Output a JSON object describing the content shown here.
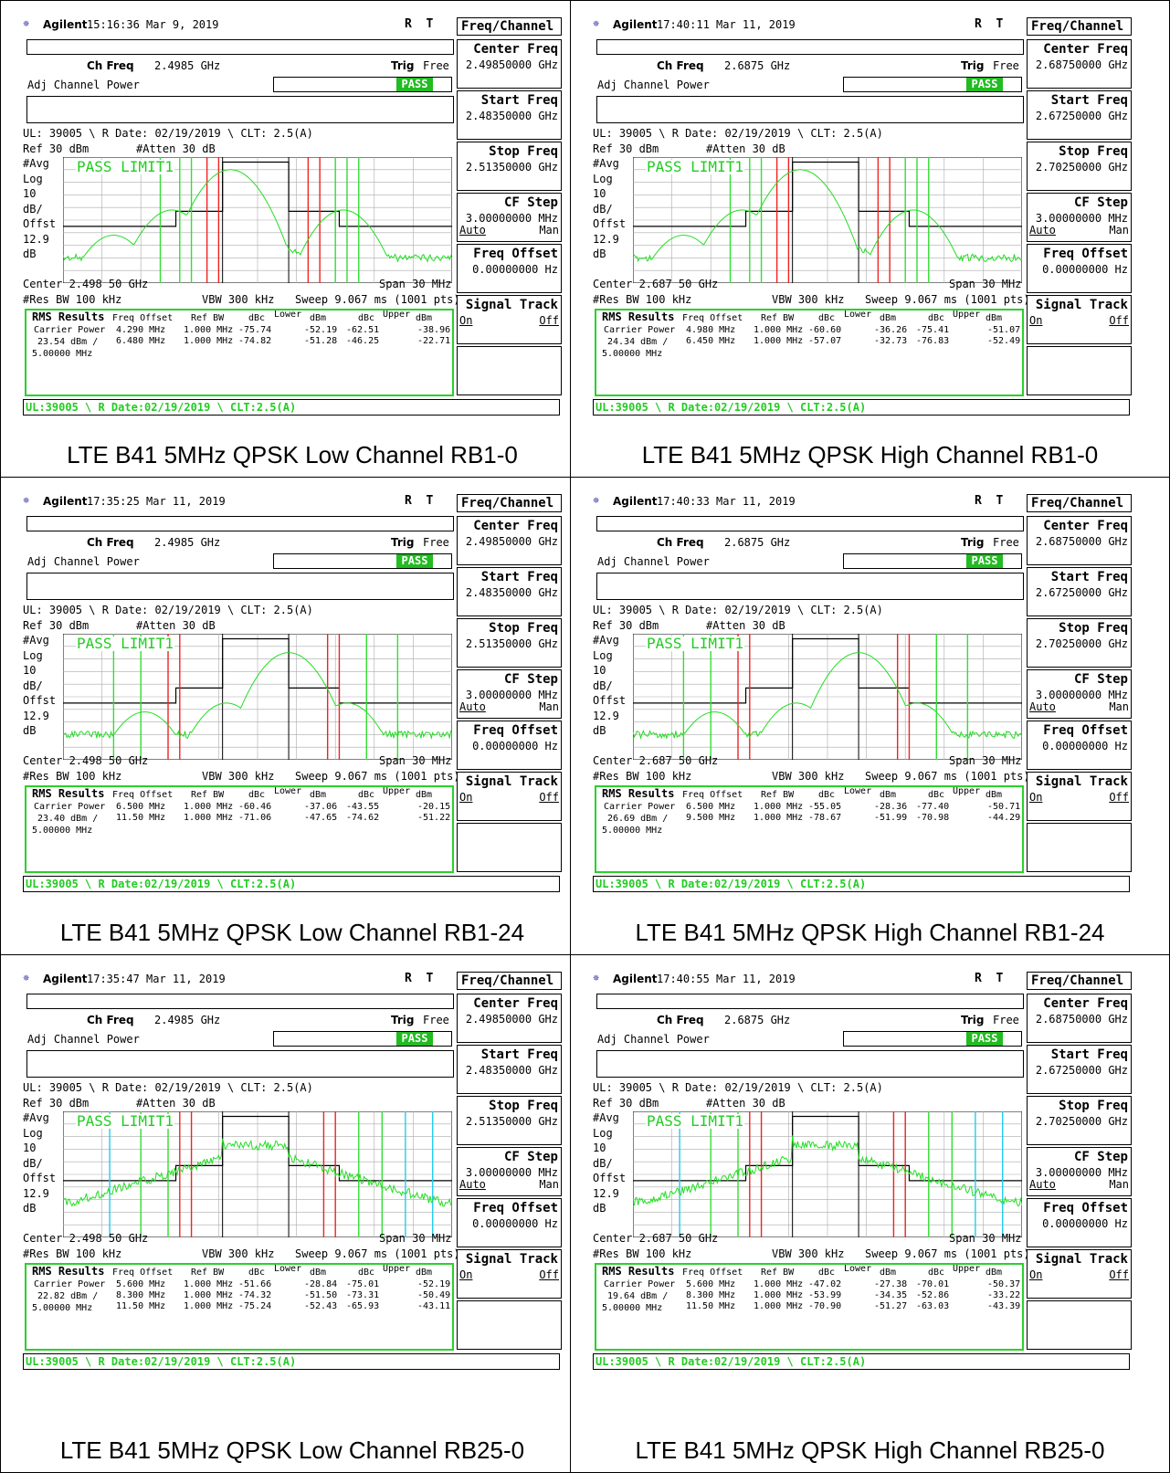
{
  "colors": {
    "trace": "#22dd22",
    "pass_bg": "#22bb22",
    "green_line": "#33dd33",
    "red_line": "#ee2222",
    "cyan_line": "#22ccee",
    "status_text": "#22cc22"
  },
  "panels": [
    {
      "caption": "LTE B41 5MHz QPSK Low Channel RB1-0",
      "header": {
        "brand": "Agilent",
        "time": "15:16:36",
        "date": "Mar 9, 2019",
        "rt": "R  T",
        "menu_title": "Freq/Channel"
      },
      "ch_freq_label": "Ch Freq",
      "ch_freq": "2.4985 GHz",
      "trig_label": "Trig",
      "trig": "Free",
      "adj": "Adj Channel Power",
      "pass": "PASS",
      "ul_line": "UL: 39005 \\ R Date: 02/19/2019 \\ CLT: 2.5(A)",
      "ref": "Ref 30 dBm",
      "atten": "#Atten 30 dB",
      "left_axis": [
        "#Avg",
        "Log",
        "10",
        "dB/",
        "Offst",
        "12.9",
        "dB"
      ],
      "limit": "PASS LIMIT1",
      "center": "Center 2.498 50 GHz",
      "span": "Span 30 MHz",
      "res_bw": "#Res BW 100 kHz",
      "vbw": "VBW 300 kHz",
      "sweep": "Sweep 9.067 ms (1001 pts)",
      "rms": {
        "title": "RMS Results",
        "h_freq": "Freq Offset",
        "h_ref": "Ref BW",
        "h_dbc1": "dBc",
        "h_lower": "Lower",
        "h_dbm1": "dBm",
        "h_dbc2": "dBc",
        "h_upper": "Upper",
        "h_dbm2": "dBm",
        "carrier": [
          "Carrier Power",
          "23.54 dBm /",
          "5.00000 MHz"
        ],
        "rows": [
          [
            "4.290 MHz",
            "1.000 MHz",
            "-75.74",
            "-52.19",
            "-62.51",
            "-38.96"
          ],
          [
            "6.480 MHz",
            "1.000 MHz",
            "-74.82",
            "-51.28",
            "-46.25",
            "-22.71"
          ]
        ]
      },
      "status": "UL:39005 \\ R Date:02/19/2019 \\ CLT:2.5(A)",
      "menu": [
        [
          "Center Freq",
          "2.49850000 GHz"
        ],
        [
          "Start Freq",
          "2.48350000 GHz"
        ],
        [
          "Stop Freq",
          "2.51350000 GHz"
        ],
        [
          "CF Step",
          "3.00000000 MHz",
          "Auto",
          "Man"
        ],
        [
          "Freq Offset",
          "0.00000000 Hz"
        ],
        [
          "Signal Track",
          "",
          "On",
          "Off"
        ],
        [
          "",
          ""
        ]
      ],
      "trace_kind": "tone_low"
    },
    {
      "caption": "LTE B41 5MHz QPSK High Channel RB1-0",
      "header": {
        "brand": "Agilent",
        "time": "17:40:11",
        "date": "Mar 11, 2019",
        "rt": "R  T",
        "menu_title": "Freq/Channel"
      },
      "ch_freq_label": "Ch Freq",
      "ch_freq": "2.6875 GHz",
      "trig_label": "Trig",
      "trig": "Free",
      "adj": "Adj Channel Power",
      "pass": "PASS",
      "ul_line": "UL: 39005 \\ R Date: 02/19/2019 \\ CLT: 2.5(A)",
      "ref": "Ref 30 dBm",
      "atten": "#Atten 30 dB",
      "left_axis": [
        "#Avg",
        "Log",
        "10",
        "dB/",
        "Offst",
        "12.9",
        "dB"
      ],
      "limit": "PASS LIMIT1",
      "center": "Center 2.687 50 GHz",
      "span": "Span 30 MHz",
      "res_bw": "#Res BW 100 kHz",
      "vbw": "VBW 300 kHz",
      "sweep": "Sweep 9.067 ms (1001 pts)",
      "rms": {
        "title": "RMS Results",
        "h_freq": "Freq Offset",
        "h_ref": "Ref BW",
        "h_dbc1": "dBc",
        "h_lower": "Lower",
        "h_dbm1": "dBm",
        "h_dbc2": "dBc",
        "h_upper": "Upper",
        "h_dbm2": "dBm",
        "carrier": [
          "Carrier Power",
          "24.34 dBm /",
          "5.00000 MHz"
        ],
        "rows": [
          [
            "4.980 MHz",
            "1.000 MHz",
            "-60.60",
            "-36.26",
            "-75.41",
            "-51.07"
          ],
          [
            "6.450 MHz",
            "1.000 MHz",
            "-57.07",
            "-32.73",
            "-76.83",
            "-52.49"
          ]
        ]
      },
      "status": "UL:39005 \\ R Date:02/19/2019 \\ CLT:2.5(A)",
      "menu": [
        [
          "Center Freq",
          "2.68750000 GHz"
        ],
        [
          "Start Freq",
          "2.67250000 GHz"
        ],
        [
          "Stop Freq",
          "2.70250000 GHz"
        ],
        [
          "CF Step",
          "3.00000000 MHz",
          "Auto",
          "Man"
        ],
        [
          "Freq Offset",
          "0.00000000 Hz"
        ],
        [
          "Signal Track",
          "",
          "On",
          "Off"
        ],
        [
          "",
          ""
        ]
      ],
      "trace_kind": "tone_low"
    },
    {
      "caption": "LTE B41 5MHz QPSK Low Channel RB1-24",
      "header": {
        "brand": "Agilent",
        "time": "17:35:25",
        "date": "Mar 11, 2019",
        "rt": "R  T",
        "menu_title": "Freq/Channel"
      },
      "ch_freq_label": "Ch Freq",
      "ch_freq": "2.4985 GHz",
      "trig_label": "Trig",
      "trig": "Free",
      "adj": "Adj Channel Power",
      "pass": "PASS",
      "ul_line": "UL: 39005 \\ R Date: 02/19/2019 \\ CLT: 2.5(A)",
      "ref": "Ref 30 dBm",
      "atten": "#Atten 30 dB",
      "left_axis": [
        "#Avg",
        "Log",
        "10",
        "dB/",
        "Offst",
        "12.9",
        "dB"
      ],
      "limit": "PASS LIMIT1",
      "center": "Center 2.498 50 GHz",
      "span": "Span 30 MHz",
      "res_bw": "#Res BW 100 kHz",
      "vbw": "VBW 300 kHz",
      "sweep": "Sweep 9.067 ms (1001 pts)",
      "rms": {
        "title": "RMS Results",
        "h_freq": "Freq Offset",
        "h_ref": "Ref BW",
        "h_dbc1": "dBc",
        "h_lower": "Lower",
        "h_dbm1": "dBm",
        "h_dbc2": "dBc",
        "h_upper": "Upper",
        "h_dbm2": "dBm",
        "carrier": [
          "Carrier Power",
          "23.40 dBm /",
          "5.00000 MHz"
        ],
        "rows": [
          [
            "6.500 MHz",
            "1.000 MHz",
            "-60.46",
            "-37.06",
            "-43.55",
            "-20.15"
          ],
          [
            "11.50 MHz",
            "1.000 MHz",
            "-71.06",
            "-47.65",
            "-74.62",
            "-51.22"
          ]
        ]
      },
      "status": "UL:39005 \\ R Date:02/19/2019 \\ CLT:2.5(A)",
      "menu": [
        [
          "Center Freq",
          "2.49850000 GHz"
        ],
        [
          "Start Freq",
          "2.48350000 GHz"
        ],
        [
          "Stop Freq",
          "2.51350000 GHz"
        ],
        [
          "CF Step",
          "3.00000000 MHz",
          "Auto",
          "Man"
        ],
        [
          "Freq Offset",
          "0.00000000 Hz"
        ],
        [
          "Signal Track",
          "",
          "On",
          "Off"
        ],
        [
          "",
          ""
        ]
      ],
      "trace_kind": "tone_high"
    },
    {
      "caption": "LTE B41 5MHz QPSK High Channel RB1-24",
      "header": {
        "brand": "Agilent",
        "time": "17:40:33",
        "date": "Mar 11, 2019",
        "rt": "R  T",
        "menu_title": "Freq/Channel"
      },
      "ch_freq_label": "Ch Freq",
      "ch_freq": "2.6875 GHz",
      "trig_label": "Trig",
      "trig": "Free",
      "adj": "Adj Channel Power",
      "pass": "PASS",
      "ul_line": "UL: 39005 \\ R Date: 02/19/2019 \\ CLT: 2.5(A)",
      "ref": "Ref 30 dBm",
      "atten": "#Atten 30 dB",
      "left_axis": [
        "#Avg",
        "Log",
        "10",
        "dB/",
        "Offst",
        "12.9",
        "dB"
      ],
      "limit": "PASS LIMIT1",
      "center": "Center 2.687 50 GHz",
      "span": "Span 30 MHz",
      "res_bw": "#Res BW 100 kHz",
      "vbw": "VBW 300 kHz",
      "sweep": "Sweep 9.067 ms (1001 pts)",
      "rms": {
        "title": "RMS Results",
        "h_freq": "Freq Offset",
        "h_ref": "Ref BW",
        "h_dbc1": "dBc",
        "h_lower": "Lower",
        "h_dbm1": "dBm",
        "h_dbc2": "dBc",
        "h_upper": "Upper",
        "h_dbm2": "dBm",
        "carrier": [
          "Carrier Power",
          "26.69 dBm /",
          "5.00000 MHz"
        ],
        "rows": [
          [
            "6.500 MHz",
            "1.000 MHz",
            "-55.05",
            "-28.36",
            "-77.40",
            "-50.71"
          ],
          [
            "9.500 MHz",
            "1.000 MHz",
            "-78.67",
            "-51.99",
            "-70.98",
            "-44.29"
          ]
        ]
      },
      "status": "UL:39005 \\ R Date:02/19/2019 \\ CLT:2.5(A)",
      "menu": [
        [
          "Center Freq",
          "2.68750000 GHz"
        ],
        [
          "Start Freq",
          "2.67250000 GHz"
        ],
        [
          "Stop Freq",
          "2.70250000 GHz"
        ],
        [
          "CF Step",
          "3.00000000 MHz",
          "Auto",
          "Man"
        ],
        [
          "Freq Offset",
          "0.00000000 Hz"
        ],
        [
          "Signal Track",
          "",
          "On",
          "Off"
        ],
        [
          "",
          ""
        ]
      ],
      "trace_kind": "tone_high"
    },
    {
      "caption": "LTE B41 5MHz QPSK Low Channel RB25-0",
      "header": {
        "brand": "Agilent",
        "time": "17:35:47",
        "date": "Mar 11, 2019",
        "rt": "R  T",
        "menu_title": "Freq/Channel"
      },
      "ch_freq_label": "Ch Freq",
      "ch_freq": "2.4985 GHz",
      "trig_label": "Trig",
      "trig": "Free",
      "adj": "Adj Channel Power",
      "pass": "PASS",
      "ul_line": "UL: 39005 \\ R Date: 02/19/2019 \\ CLT: 2.5(A)",
      "ref": "Ref 30 dBm",
      "atten": "#Atten 30 dB",
      "left_axis": [
        "#Avg",
        "Log",
        "10",
        "dB/",
        "Offst",
        "12.9",
        "dB"
      ],
      "limit": "PASS LIMIT1",
      "center": "Center 2.498 50 GHz",
      "span": "Span 30 MHz",
      "res_bw": "#Res BW 100 kHz",
      "vbw": "VBW 300 kHz",
      "sweep": "Sweep 9.067 ms (1001 pts)",
      "rms": {
        "title": "RMS Results",
        "h_freq": "Freq Offset",
        "h_ref": "Ref BW",
        "h_dbc1": "dBc",
        "h_lower": "Lower",
        "h_dbm1": "dBm",
        "h_dbc2": "dBc",
        "h_upper": "Upper",
        "h_dbm2": "dBm",
        "carrier": [
          "Carrier Power",
          "22.82 dBm /",
          "5.00000 MHz"
        ],
        "rows": [
          [
            "5.600 MHz",
            "1.000 MHz",
            "-51.66",
            "-28.84",
            "-75.01",
            "-52.19"
          ],
          [
            "8.300 MHz",
            "1.000 MHz",
            "-74.32",
            "-51.50",
            "-73.31",
            "-50.49"
          ],
          [
            "11.50 MHz",
            "1.000 MHz",
            "-75.24",
            "-52.43",
            "-65.93",
            "-43.11"
          ]
        ]
      },
      "status": "UL:39005 \\ R Date:02/19/2019 \\ CLT:2.5(A)",
      "menu": [
        [
          "Center Freq",
          "2.49850000 GHz"
        ],
        [
          "Start Freq",
          "2.48350000 GHz"
        ],
        [
          "Stop Freq",
          "2.51350000 GHz"
        ],
        [
          "CF Step",
          "3.00000000 MHz",
          "Auto",
          "Man"
        ],
        [
          "Freq Offset",
          "0.00000000 Hz"
        ],
        [
          "Signal Track",
          "",
          "On",
          "Off"
        ],
        [
          "",
          ""
        ]
      ],
      "trace_kind": "band"
    },
    {
      "caption": "LTE B41 5MHz QPSK High Channel RB25-0",
      "header": {
        "brand": "Agilent",
        "time": "17:40:55",
        "date": "Mar 11, 2019",
        "rt": "R  T",
        "menu_title": "Freq/Channel"
      },
      "ch_freq_label": "Ch Freq",
      "ch_freq": "2.6875 GHz",
      "trig_label": "Trig",
      "trig": "Free",
      "adj": "Adj Channel Power",
      "pass": "PASS",
      "ul_line": "UL: 39005 \\ R Date: 02/19/2019 \\ CLT: 2.5(A)",
      "ref": "Ref 30 dBm",
      "atten": "#Atten 30 dB",
      "left_axis": [
        "#Avg",
        "Log",
        "10",
        "dB/",
        "Offst",
        "12.9",
        "dB"
      ],
      "limit": "PASS LIMIT1",
      "center": "Center 2.687 50 GHz",
      "span": "Span 30 MHz",
      "res_bw": "#Res BW 100 kHz",
      "vbw": "VBW 300 kHz",
      "sweep": "Sweep 9.067 ms (1001 pts)",
      "rms": {
        "title": "RMS Results",
        "h_freq": "Freq Offset",
        "h_ref": "Ref BW",
        "h_dbc1": "dBc",
        "h_lower": "Lower",
        "h_dbm1": "dBm",
        "h_dbc2": "dBc",
        "h_upper": "Upper",
        "h_dbm2": "dBm",
        "carrier": [
          "Carrier Power",
          "19.64 dBm /",
          "5.00000 MHz"
        ],
        "rows": [
          [
            "5.600 MHz",
            "1.000 MHz",
            "-47.02",
            "-27.38",
            "-70.01",
            "-50.37"
          ],
          [
            "8.300 MHz",
            "1.000 MHz",
            "-53.99",
            "-34.35",
            "-52.86",
            "-33.22"
          ],
          [
            "11.50 MHz",
            "1.000 MHz",
            "-70.90",
            "-51.27",
            "-63.03",
            "-43.39"
          ]
        ]
      },
      "status": "UL:39005 \\ R Date:02/19/2019 \\ CLT:2.5(A)",
      "menu": [
        [
          "Center Freq",
          "2.68750000 GHz"
        ],
        [
          "Start Freq",
          "2.67250000 GHz"
        ],
        [
          "Stop Freq",
          "2.70250000 GHz"
        ],
        [
          "CF Step",
          "3.00000000 MHz",
          "Auto",
          "Man"
        ],
        [
          "Freq Offset",
          "0.00000000 Hz"
        ],
        [
          "Signal Track",
          "",
          "On",
          "Off"
        ],
        [
          "",
          ""
        ]
      ],
      "trace_kind": "band"
    }
  ]
}
